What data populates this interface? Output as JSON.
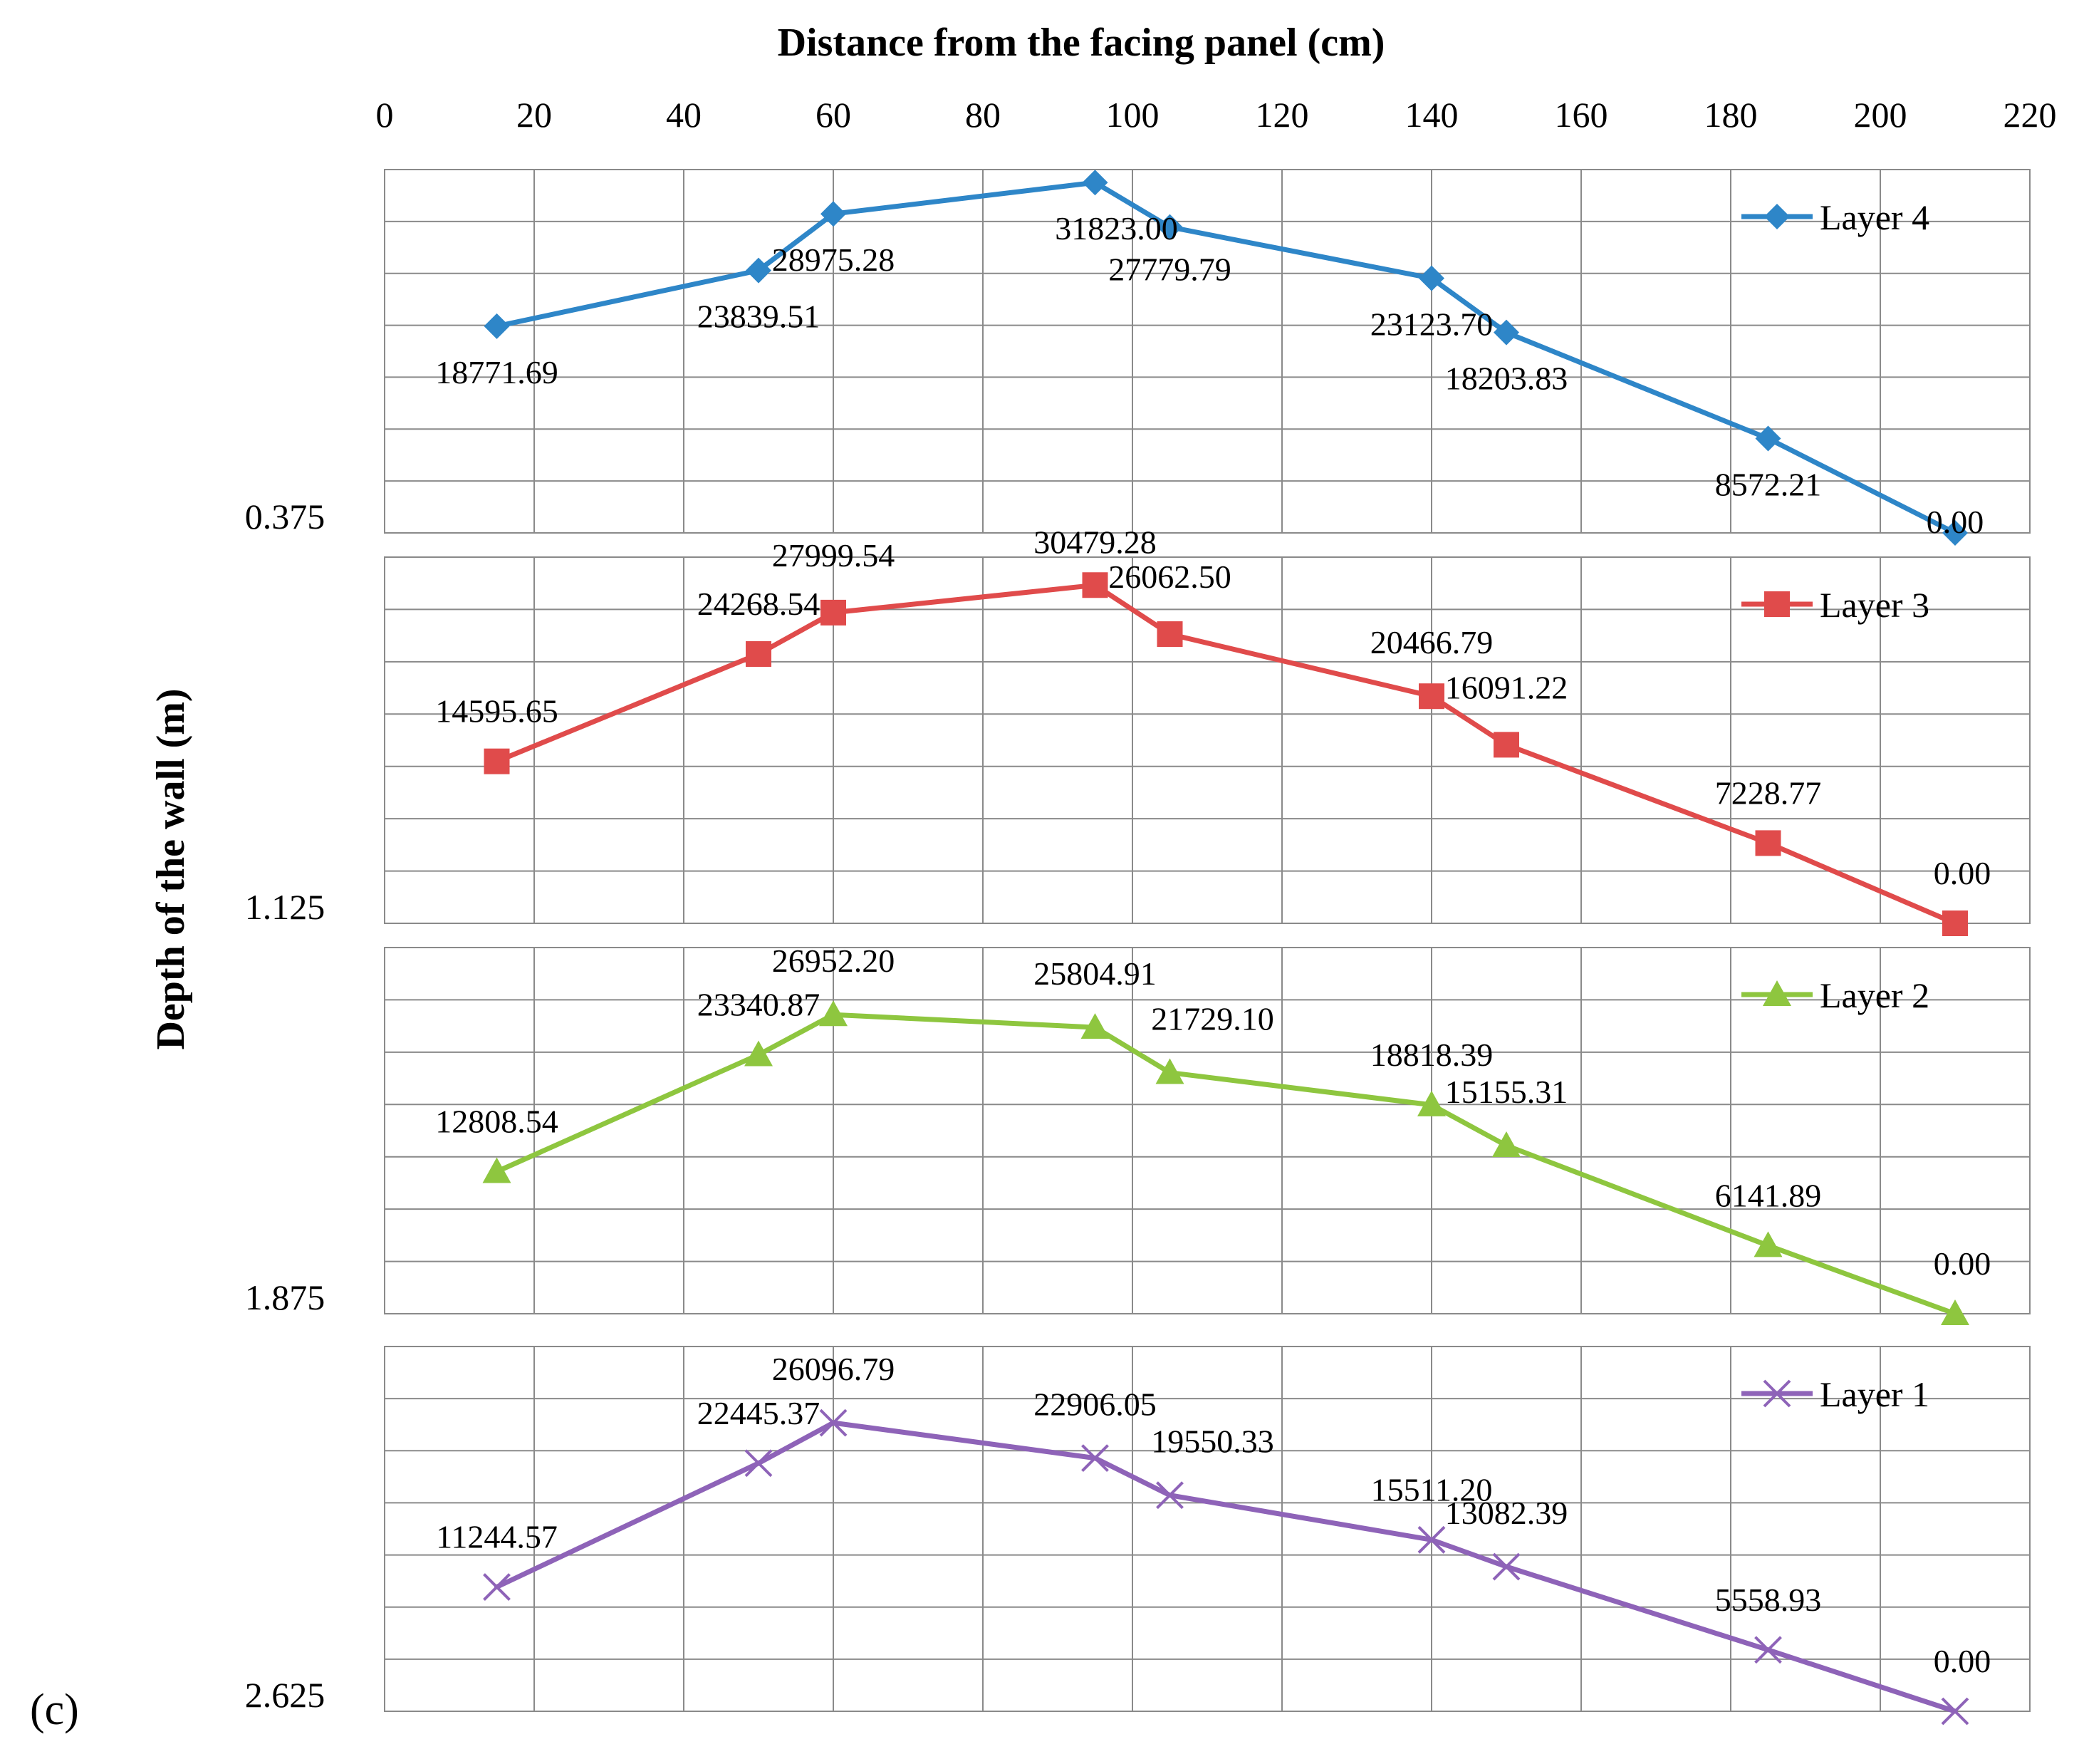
{
  "chart_data": {
    "type": "line",
    "xlabel": "Distance  from the facing panel  (cm)",
    "ylabel": "Depth of the wall (m)",
    "x_ticks": [
      "0",
      "20",
      "40",
      "60",
      "80",
      "100",
      "120",
      "140",
      "160",
      "180",
      "200",
      "220"
    ],
    "xlim": [
      0,
      220
    ],
    "x_axis_position": "top",
    "grid": true,
    "legend_placement": "top-right of each panel",
    "x": [
      15,
      50,
      60,
      95,
      105,
      140,
      150,
      185,
      210
    ],
    "corner_label": "(c)",
    "series": [
      {
        "name": "Layer 4",
        "depth_label": "0.375",
        "color": "#2e86c8",
        "marker": "diamond",
        "values": [
          18771.69,
          23839.51,
          28975.28,
          31823.0,
          27779.79,
          23123.7,
          18203.83,
          8572.21,
          0.0
        ],
        "labels": [
          "18771.69",
          "23839.51",
          "28975.28",
          "31823.00",
          "27779.79",
          "23123.70",
          "18203.83",
          "8572.21",
          "0.00"
        ]
      },
      {
        "name": "Layer 3",
        "depth_label": "1.125",
        "color": "#e04b4b",
        "marker": "square",
        "values": [
          14595.65,
          24268.54,
          27999.54,
          30479.28,
          26062.5,
          20466.79,
          16091.22,
          7228.77,
          0.0
        ],
        "labels": [
          "14595.65",
          "24268.54",
          "27999.54",
          "30479.28",
          "26062.50",
          "20466.79",
          "16091.22",
          "7228.77",
          "0.00"
        ]
      },
      {
        "name": "Layer 2",
        "depth_label": "1.875",
        "color": "#8ec63f",
        "marker": "triangle",
        "values": [
          12808.54,
          23340.87,
          26952.2,
          25804.91,
          21729.1,
          18818.39,
          15155.31,
          6141.89,
          0.0
        ],
        "labels": [
          "12808.54",
          "23340.87",
          "26952.20",
          "25804.91",
          "21729.10",
          "18818.39",
          "15155.31",
          "6141.89",
          "0.00"
        ]
      },
      {
        "name": "Layer 1",
        "depth_label": "2.625",
        "color": "#8e63b8",
        "marker": "x",
        "values": [
          11244.57,
          22445.37,
          26096.79,
          22906.05,
          19550.33,
          15511.2,
          13082.39,
          5558.93,
          0.0
        ],
        "labels": [
          "11244.57",
          "22445.37",
          "26096.79",
          "22906.05",
          "19550.33",
          "15511.20",
          "13082.39",
          "5558.93",
          "0.00"
        ]
      }
    ]
  }
}
